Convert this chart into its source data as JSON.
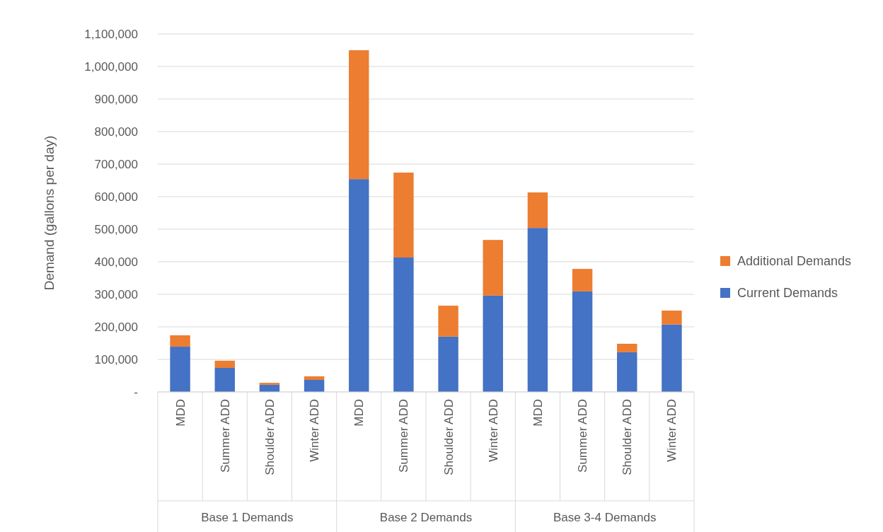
{
  "chart_data": {
    "type": "bar",
    "stacked": true,
    "ylabel": "Demand (gallons per day)",
    "categories": [
      "MDD",
      "Summer ADD",
      "Shoulder ADD",
      "Winter ADD",
      "MDD",
      "Summer ADD",
      "Shoulder ADD",
      "Winter ADD",
      "MDD",
      "Summer ADD",
      "Shoulder ADD",
      "Winter ADD"
    ],
    "annotations": [
      "Base 1 Demands",
      "Base 2 Demands",
      "Base 3-4 Demands"
    ],
    "series": [
      {
        "name": "Current Demands",
        "color": "#4472c4",
        "values": [
          139000,
          74000,
          22000,
          37000,
          654000,
          413000,
          170000,
          296000,
          504000,
          309000,
          122000,
          207000
        ]
      },
      {
        "name": "Additional Demands",
        "color": "#ed7d31",
        "values": [
          35000,
          22000,
          6000,
          11000,
          396000,
          261000,
          95000,
          171000,
          109000,
          69000,
          26000,
          43000
        ]
      }
    ],
    "ylim": [
      0,
      1100000
    ],
    "yticks": [
      {
        "value": 0,
        "label": "-"
      },
      {
        "value": 100000,
        "label": "100,000"
      },
      {
        "value": 200000,
        "label": "200,000"
      },
      {
        "value": 300000,
        "label": "300,000"
      },
      {
        "value": 400000,
        "label": "400,000"
      },
      {
        "value": 500000,
        "label": "500,000"
      },
      {
        "value": 600000,
        "label": "600,000"
      },
      {
        "value": 700000,
        "label": "700,000"
      },
      {
        "value": 800000,
        "label": "800,000"
      },
      {
        "value": 900000,
        "label": "900,000"
      },
      {
        "value": 1000000,
        "label": "1,000,000"
      },
      {
        "value": 1100000,
        "label": "1,100,000"
      }
    ],
    "grid": "y",
    "legend": "right"
  }
}
